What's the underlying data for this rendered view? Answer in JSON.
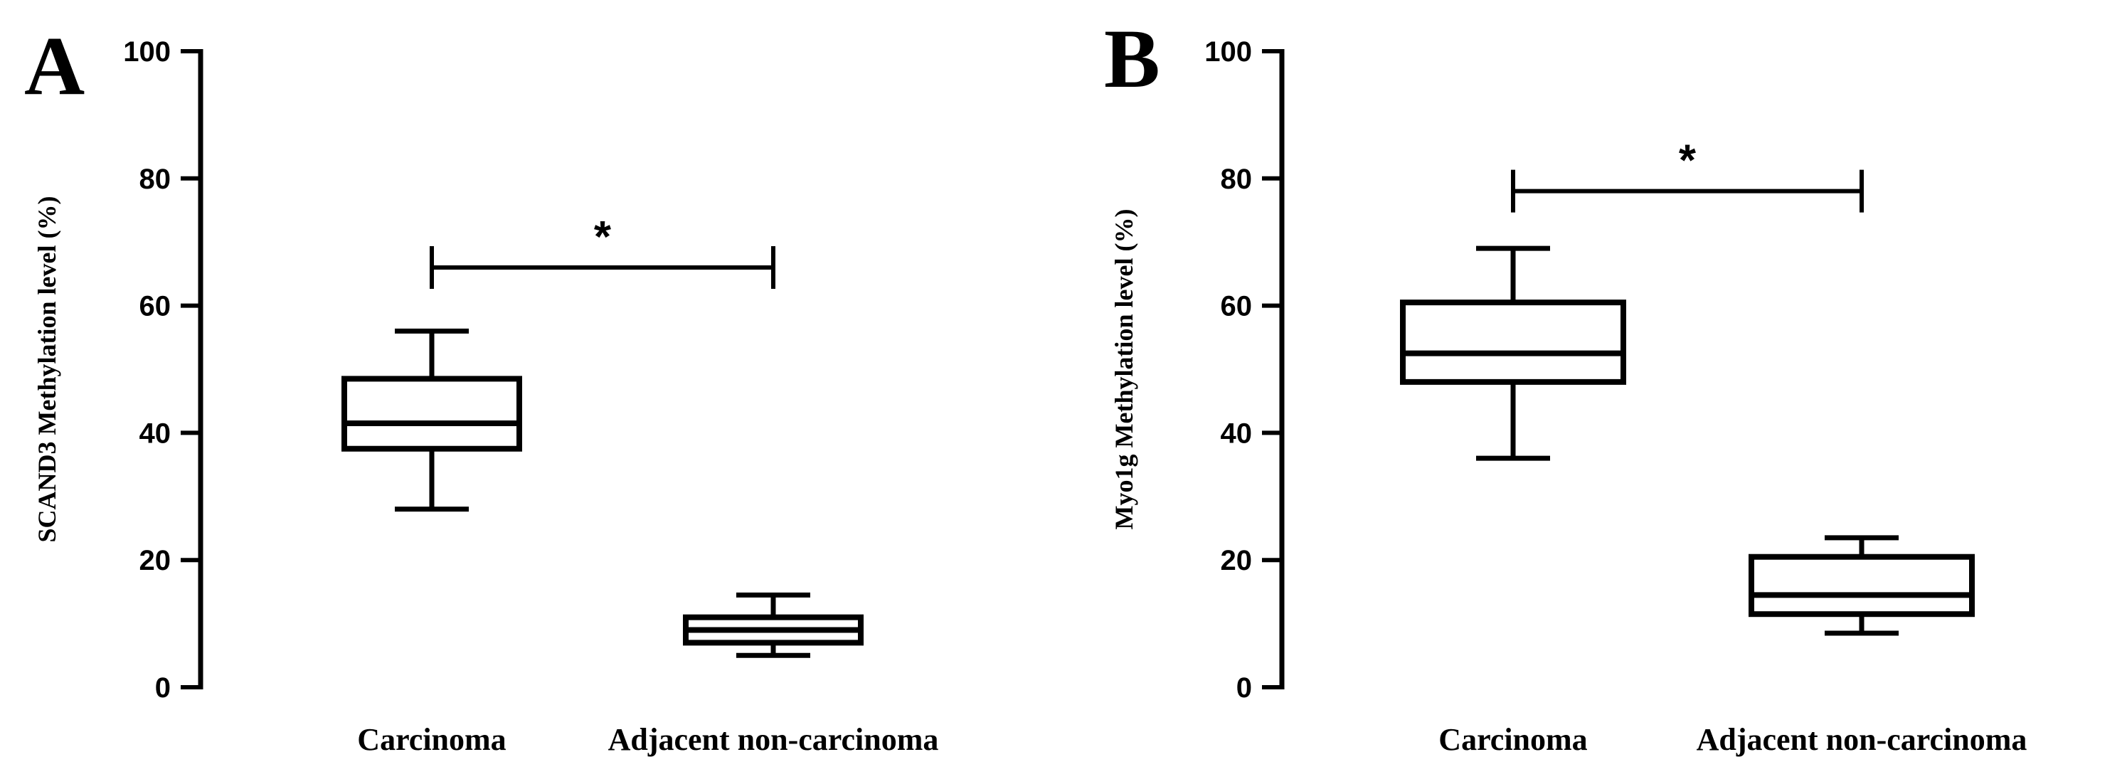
{
  "chart_data": [
    {
      "type": "box",
      "panel_label": "A",
      "ylabel": "SCAND3 Methylation level (%)",
      "xlabel": "",
      "ylim": [
        0,
        100
      ],
      "yticks": [
        0,
        20,
        40,
        60,
        80,
        100
      ],
      "categories": [
        "Carcinoma",
        "Adjacent non-carcinoma"
      ],
      "boxes": [
        {
          "category": "Carcinoma",
          "min": 28,
          "q1": 37.5,
          "median": 41.5,
          "q3": 48.5,
          "max": 56
        },
        {
          "category": "Adjacent non-carcinoma",
          "min": 5,
          "q1": 7,
          "median": 9,
          "q3": 11,
          "max": 14.5
        }
      ],
      "significance": {
        "label": "*",
        "between": [
          0,
          1
        ],
        "y": 66
      },
      "grid": false,
      "legend": "none"
    },
    {
      "type": "box",
      "panel_label": "B",
      "ylabel": "Myo1g Methylation level (%)",
      "xlabel": "",
      "ylim": [
        0,
        100
      ],
      "yticks": [
        0,
        20,
        40,
        60,
        80,
        100
      ],
      "categories": [
        "Carcinoma",
        "Adjacent non-carcinoma"
      ],
      "boxes": [
        {
          "category": "Carcinoma",
          "min": 36,
          "q1": 48,
          "median": 52.5,
          "q3": 60.5,
          "max": 69
        },
        {
          "category": "Adjacent non-carcinoma",
          "min": 8.5,
          "q1": 11.5,
          "median": 14.5,
          "q3": 20.5,
          "max": 23.5
        }
      ],
      "significance": {
        "label": "*",
        "between": [
          0,
          1
        ],
        "y": 78
      },
      "grid": false,
      "legend": "none"
    }
  ]
}
